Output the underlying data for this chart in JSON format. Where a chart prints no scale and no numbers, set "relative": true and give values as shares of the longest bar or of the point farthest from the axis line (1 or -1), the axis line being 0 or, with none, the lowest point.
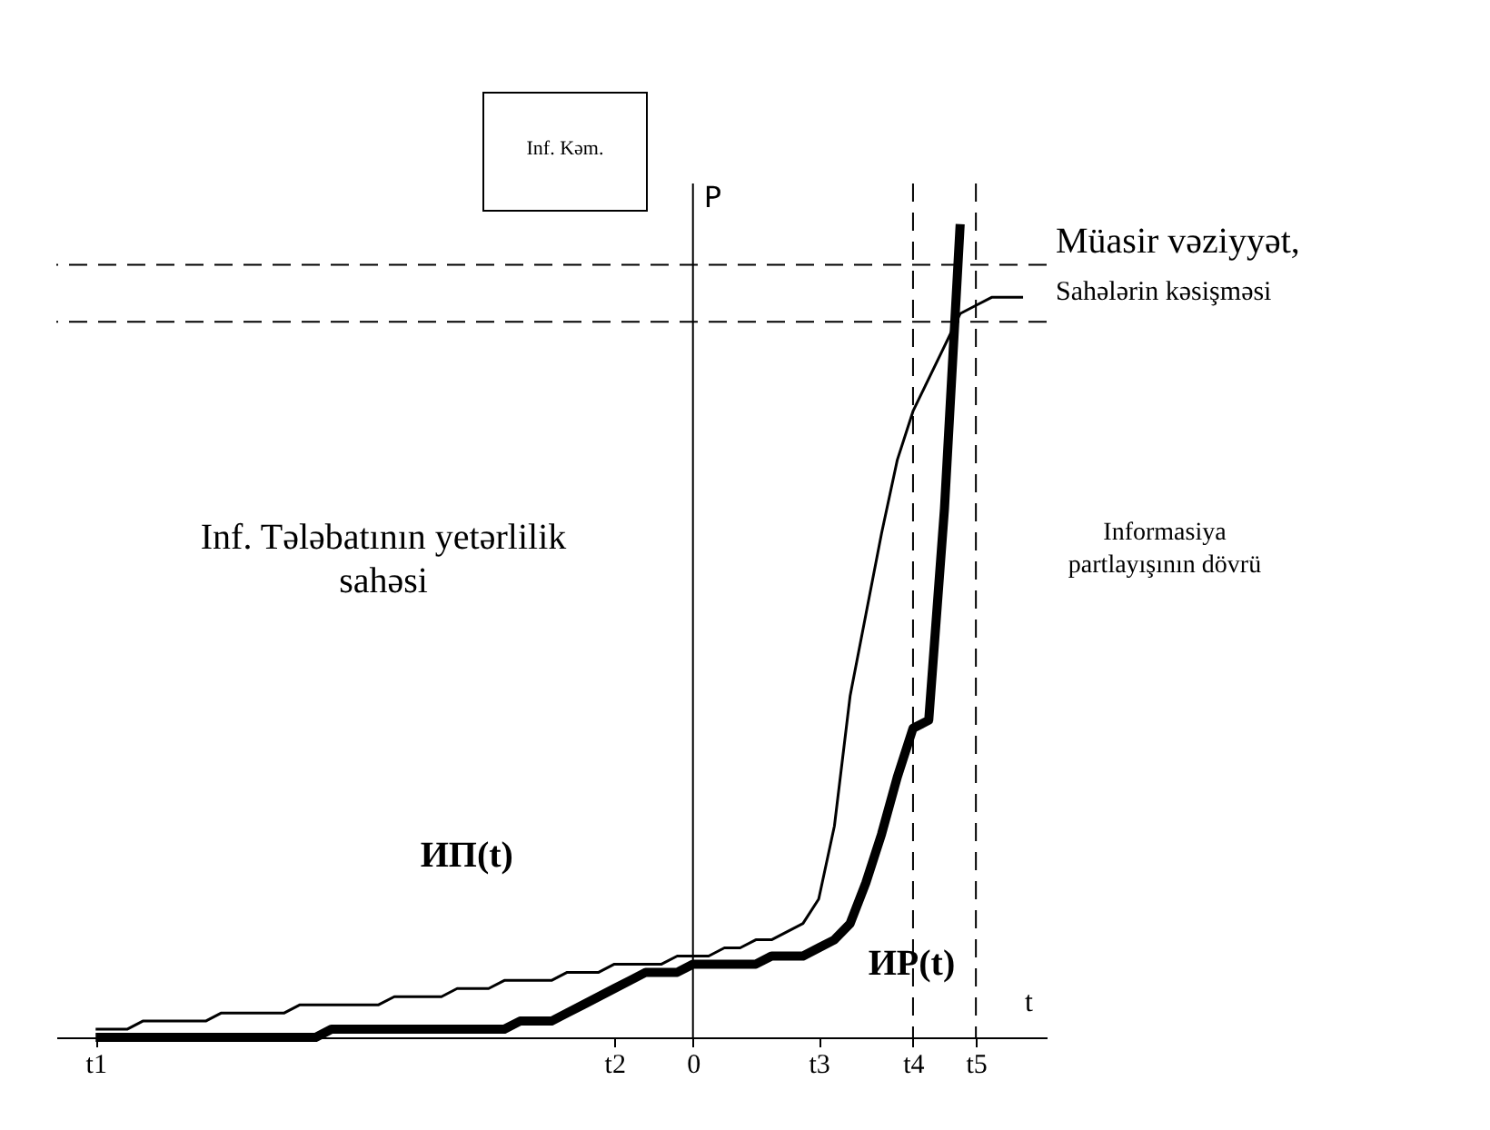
{
  "chart_data": {
    "type": "line",
    "relative": true,
    "xlabel": "t",
    "ylabel": "P",
    "categories": [
      null,
      null,
      "t1",
      null,
      null,
      null,
      null,
      null,
      null,
      null,
      null,
      null,
      null,
      null,
      null,
      null,
      null,
      null,
      null,
      null,
      null,
      null,
      null,
      null,
      null,
      null,
      null,
      null,
      null,
      null,
      null,
      null,
      null,
      null,
      null,
      "t2",
      null,
      null,
      null,
      null,
      "0",
      null,
      null,
      null,
      null,
      null,
      null,
      null,
      "t3",
      null,
      null,
      null,
      null,
      null,
      "t4",
      null,
      null,
      null,
      "t5",
      null,
      null,
      null,
      null
    ],
    "tick_labels": "x",
    "grid": false,
    "legend": false,
    "marker": "none",
    "series": [
      {
        "name": "ИП(t)",
        "color": "#000000",
        "line_style": "solid",
        "values": [
          null,
          null,
          0.01,
          0.01,
          0.01,
          0.02,
          0.02,
          0.02,
          0.02,
          0.02,
          0.03,
          0.03,
          0.03,
          0.03,
          0.03,
          0.04,
          0.04,
          0.04,
          0.04,
          0.04,
          0.04,
          0.05,
          0.05,
          0.05,
          0.05,
          0.06,
          0.06,
          0.06,
          0.07,
          0.07,
          0.07,
          0.07,
          0.08,
          0.08,
          0.08,
          0.09,
          0.09,
          0.09,
          0.09,
          0.1,
          0.1,
          0.1,
          0.11,
          0.11,
          0.12,
          0.12,
          0.13,
          0.14,
          0.17,
          0.26,
          0.42,
          0.52,
          0.62,
          0.71,
          0.77,
          0.81,
          0.85,
          0.89,
          0.9,
          0.91,
          0.91,
          0.91,
          null
        ]
      },
      {
        "name": "ИР(t)",
        "color": "#000000",
        "line_style": "solid",
        "values": [
          null,
          null,
          0,
          0,
          0,
          0,
          0,
          0,
          0,
          0,
          0,
          0,
          0,
          0,
          0,
          0,
          0,
          0.01,
          0.01,
          0.01,
          0.01,
          0.01,
          0.01,
          0.01,
          0.01,
          0.01,
          0.01,
          0.01,
          0.01,
          0.02,
          0.02,
          0.02,
          0.03,
          0.04,
          0.05,
          0.06,
          0.07,
          0.08,
          0.08,
          0.08,
          0.09,
          0.09,
          0.09,
          0.09,
          0.09,
          0.1,
          0.1,
          0.1,
          0.11,
          0.12,
          0.14,
          0.19,
          0.25,
          0.32,
          0.38,
          0.39,
          0.65,
          1.0,
          null,
          null,
          null,
          null,
          null
        ]
      }
    ],
    "ref_lines": [
      {
        "axis": "x",
        "value": "0",
        "line_style": "solid"
      },
      {
        "axis": "y",
        "value": 0.95,
        "line_style": "dashed"
      },
      {
        "axis": "y",
        "value": 0.88,
        "line_style": "dashed"
      },
      {
        "axis": "x",
        "value": "t4",
        "line_style": "dashed"
      },
      {
        "axis": "x",
        "value": "t5",
        "line_style": "dashed"
      }
    ],
    "annotations": [
      "Inf. Kəm.",
      "Müasir vəziyyət,",
      "Sahələrin kəsişməsi",
      "Inf. Tələbatının yetərlilik sahəsi",
      "Informasiya partlayışının dövrü"
    ]
  }
}
